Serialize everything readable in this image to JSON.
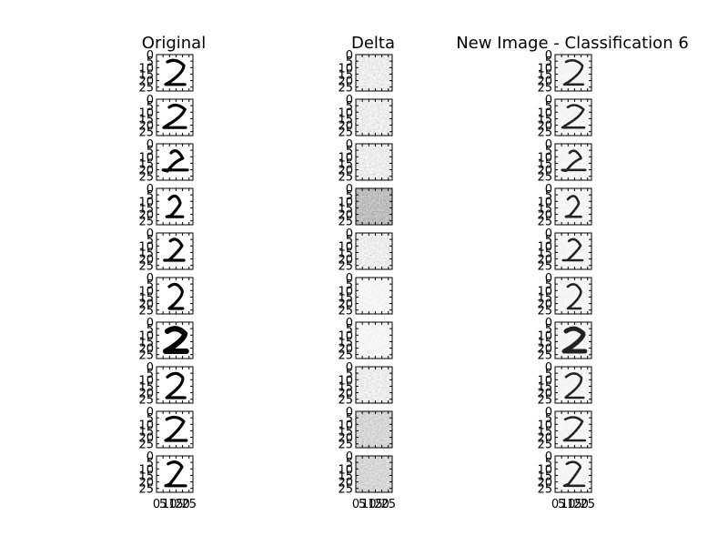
{
  "chart_data": {
    "type": "image_grid",
    "layout": {
      "rows": 10,
      "columns": 3
    },
    "columns": [
      {
        "title": "Original"
      },
      {
        "title": "Delta"
      },
      {
        "title": "New Image - Classification 6"
      }
    ],
    "image_size": [
      28,
      28
    ],
    "colormap": "gray",
    "y_ticks": [
      "0",
      "5",
      "10",
      "15",
      "20",
      "25"
    ],
    "x_ticks": [
      "0",
      "5",
      "10",
      "15",
      "20",
      "25"
    ],
    "xlim": [
      0,
      28
    ],
    "ylim": [
      28,
      0
    ],
    "digit_label_shown": "2",
    "panels_per_column": 10
  }
}
